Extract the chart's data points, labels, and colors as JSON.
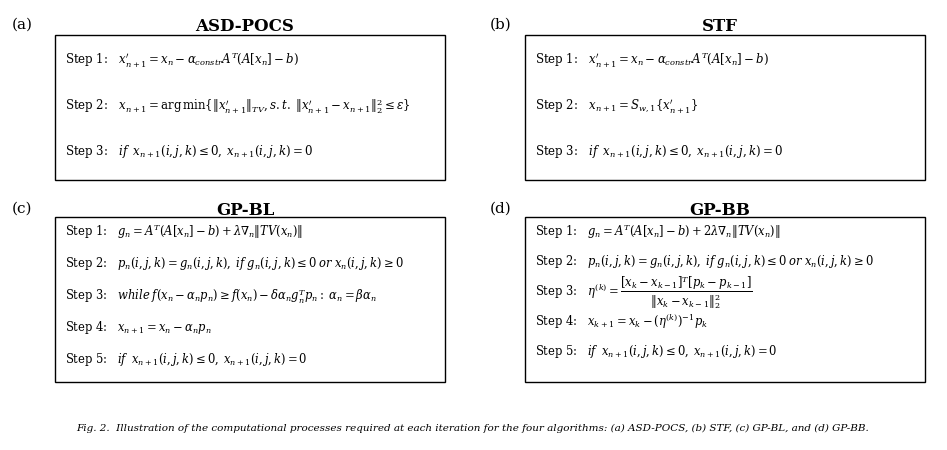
{
  "title_a": "ASD-POCS",
  "title_b": "STF",
  "title_c": "GP-BL",
  "title_d": "GP-BB",
  "label_a": "(a)",
  "label_b": "(b)",
  "label_c": "(c)",
  "label_d": "(d)",
  "steps_a": [
    "Step 1:   $\\mathit{x}^{\\prime}_{n+1} = x_n - \\alpha_{constr}A^T(A[x_n]-b)$",
    "Step 2:   $x_{n+1} = \\mathrm{arg\\,min}\\{\\|x^{\\prime}_{n+1}\\|_{TV}, s.t.\\; \\|x^{\\prime}_{n+1}-x_{n+1}\\|_2^2 \\leq \\varepsilon\\}$",
    "Step 3:   $\\mathit{if}\\;\\; x_{n+1}(i,j,k)\\leq 0,\\; x_{n+1}(i,j,k)=0$"
  ],
  "steps_b": [
    "Step 1:   $x^{\\prime}_{n+1} = x_n - \\alpha_{constr}A^T(A[x_n]-b)$",
    "Step 2:   $x_{n+1} = S_{w,1}\\{x^{\\prime}_{n+1}\\}$",
    "Step 3:   $\\mathit{if}\\;\\; x_{n+1}(i,j,k)\\leq 0,\\; x_{n+1}(i,j,k)=0$"
  ],
  "steps_c": [
    "Step 1:   $g_n = A^T(A[x_n]-b)+\\lambda\\nabla_n\\|TV(x_n)\\|$",
    "Step 2:   $p_n(i,j,k) = g_n(i,j,k),\\; \\mathit{if}\\; g_n(i,j,k)\\leq 0\\; \\mathit{or}\\; x_n(i,j,k)\\geq 0$",
    "Step 3:   $\\mathit{while}\\; f(x_n - \\alpha_n p_n) \\geq f(x_n) - \\delta\\alpha_n g_n^T p_n:\\; \\alpha_n = \\beta\\alpha_n$",
    "Step 4:   $x_{n+1} = x_n - \\alpha_n p_n$",
    "Step 5:   $\\mathit{if}\\;\\; x_{n+1}(i,j,k)\\leq 0,\\; x_{n+1}(i,j,k)=0$"
  ],
  "steps_d": [
    "Step 1:   $g_n = A^T(A[x_n]-b)+2\\lambda\\nabla_n\\|TV(x_n)\\|$",
    "Step 2:   $p_n(i,j,k) = g_n(i,j,k),\\; \\mathit{if}\\; g_n(i,j,k)\\leq 0\\; \\mathit{or}\\; x_n(i,j,k)\\geq 0$",
    "Step 3:   $\\eta^{(k)} = \\dfrac{[x_k - x_{k-1}]^T[p_k - p_{k-1}]}{\\|x_k - x_{k-1}\\|_2^2}$",
    "Step 4:   $x_{k+1} = x_k - (\\eta^{(k)})^{-1} p_k$",
    "Step 5:   $\\mathit{if}\\;\\; x_{n+1}(i,j,k)\\leq 0,\\; x_{n+1}(i,j,k)=0$"
  ],
  "caption": "Fig. 2.  Illustration of the computational processes required at each iteration for the four algorithms: (a) ASD-POCS, (b) STF, (c) GP-BL, and (d) GP-BB.",
  "bg_color": "#ffffff",
  "box_color": "#000000"
}
